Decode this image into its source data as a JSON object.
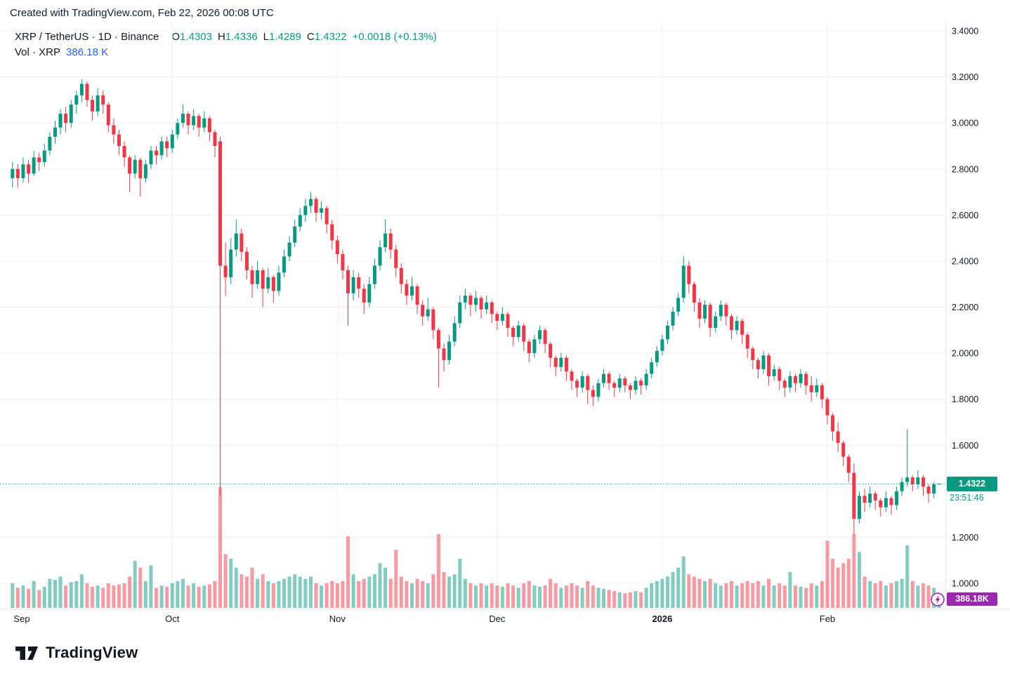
{
  "attribution": "Created with TradingView.com, Feb 22, 2026 00:08 UTC",
  "legend": {
    "symbol": "XRP / TetherUS · 1D · Binance",
    "ohlc_items": [
      {
        "key": "O",
        "value": "1.4303"
      },
      {
        "key": "H",
        "value": "1.4336"
      },
      {
        "key": "L",
        "value": "1.4289"
      },
      {
        "key": "C",
        "value": "1.4322"
      }
    ],
    "change": "+0.0018 (+0.13%)",
    "volume_label": "Vol · XRP",
    "volume_value": "386.18 K"
  },
  "last_price": {
    "value": "1.4322",
    "countdown": "23:51:46"
  },
  "volume_badge": {
    "value": "386.18K"
  },
  "logo": {
    "text": "TradingView"
  },
  "colors": {
    "up": "#089981",
    "down": "#F23645",
    "vol_up": "rgba(8,153,129,0.5)",
    "vol_down": "rgba(242,54,69,0.5)",
    "grid": "#eceff4",
    "axis_line": "#e0e3eb",
    "axis_text": "#131722",
    "accent_blue": "#2962FF",
    "vol_label": "#9C27B0"
  },
  "price_axis": {
    "ticks": [
      {
        "price": 3.4,
        "label": "3.4000"
      },
      {
        "price": 3.2,
        "label": "3.2000"
      },
      {
        "price": 3.0,
        "label": "3.0000"
      },
      {
        "price": 2.8,
        "label": "2.8000"
      },
      {
        "price": 2.6,
        "label": "2.6000"
      },
      {
        "price": 2.4,
        "label": "2.4000"
      },
      {
        "price": 2.2,
        "label": "2.2000"
      },
      {
        "price": 2.0,
        "label": "2.0000"
      },
      {
        "price": 1.8,
        "label": "1.8000"
      },
      {
        "price": 1.6,
        "label": "1.6000"
      },
      {
        "price": 1.2,
        "label": "1.2000"
      },
      {
        "price": 1.0,
        "label": "1.0000"
      }
    ]
  },
  "time_axis": {
    "labels": [
      {
        "label": "Sep",
        "index": 0,
        "bold": false
      },
      {
        "label": "Oct",
        "index": 30,
        "bold": false
      },
      {
        "label": "Nov",
        "index": 61,
        "bold": false
      },
      {
        "label": "Dec",
        "index": 91,
        "bold": false
      },
      {
        "label": "2026",
        "index": 122,
        "bold": true
      },
      {
        "label": "Feb",
        "index": 153,
        "bold": false
      }
    ]
  },
  "chart_data": {
    "type": "candlestick",
    "title": "XRP / TetherUS · 1D · Binance",
    "symbol": "XRP/USDT",
    "interval": "1D",
    "exchange": "Binance",
    "date_start": "2025-09-01",
    "date_end": "2026-02-22",
    "price_range": [
      1.0,
      3.4
    ],
    "last_close": 1.4322,
    "last_volume_k": 386.18,
    "volume_scale_max_k": 5400,
    "candles_format": [
      "open",
      "high",
      "low",
      "close",
      "volume_thousands"
    ],
    "candles": [
      [
        2.76,
        2.83,
        2.72,
        2.8,
        1100
      ],
      [
        2.8,
        2.82,
        2.72,
        2.76,
        900
      ],
      [
        2.76,
        2.85,
        2.74,
        2.82,
        1000
      ],
      [
        2.82,
        2.84,
        2.74,
        2.78,
        850
      ],
      [
        2.78,
        2.88,
        2.77,
        2.85,
        1200
      ],
      [
        2.85,
        2.87,
        2.79,
        2.83,
        800
      ],
      [
        2.83,
        2.91,
        2.81,
        2.88,
        950
      ],
      [
        2.88,
        2.96,
        2.86,
        2.94,
        1300
      ],
      [
        2.94,
        3.01,
        2.91,
        2.98,
        1250
      ],
      [
        2.98,
        3.06,
        2.95,
        3.04,
        1400
      ],
      [
        3.04,
        3.07,
        2.96,
        3.0,
        1000
      ],
      [
        3.0,
        3.1,
        2.98,
        3.08,
        1150
      ],
      [
        3.08,
        3.14,
        3.04,
        3.12,
        1200
      ],
      [
        3.12,
        3.19,
        3.09,
        3.17,
        1500
      ],
      [
        3.17,
        3.18,
        3.07,
        3.1,
        1100
      ],
      [
        3.1,
        3.12,
        3.01,
        3.05,
        950
      ],
      [
        3.05,
        3.15,
        3.03,
        3.12,
        1000
      ],
      [
        3.12,
        3.14,
        3.04,
        3.08,
        900
      ],
      [
        3.08,
        3.09,
        2.96,
        2.99,
        1100
      ],
      [
        2.99,
        3.02,
        2.91,
        2.95,
        1000
      ],
      [
        2.95,
        2.97,
        2.86,
        2.9,
        1050
      ],
      [
        2.9,
        2.92,
        2.81,
        2.85,
        1100
      ],
      [
        2.85,
        2.86,
        2.7,
        2.78,
        1400
      ],
      [
        2.78,
        2.86,
        2.76,
        2.84,
        2100
      ],
      [
        2.84,
        2.85,
        2.68,
        2.76,
        1800
      ],
      [
        2.76,
        2.84,
        2.74,
        2.82,
        1200
      ],
      [
        2.82,
        2.9,
        2.8,
        2.88,
        1900
      ],
      [
        2.88,
        2.9,
        2.82,
        2.86,
        900
      ],
      [
        2.86,
        2.94,
        2.84,
        2.92,
        1000
      ],
      [
        2.92,
        2.94,
        2.85,
        2.89,
        950
      ],
      [
        2.89,
        2.97,
        2.87,
        2.95,
        1100
      ],
      [
        2.95,
        3.02,
        2.93,
        3.0,
        1200
      ],
      [
        3.0,
        3.08,
        2.98,
        3.04,
        1300
      ],
      [
        3.04,
        3.05,
        2.95,
        2.99,
        1000
      ],
      [
        2.99,
        3.06,
        2.97,
        3.03,
        1100
      ],
      [
        3.03,
        3.04,
        2.94,
        2.98,
        950
      ],
      [
        2.98,
        3.05,
        2.96,
        3.02,
        1000
      ],
      [
        3.02,
        3.03,
        2.92,
        2.96,
        1050
      ],
      [
        2.96,
        2.97,
        2.85,
        2.9,
        1200
      ],
      [
        2.92,
        2.94,
        1.38,
        2.38,
        5400
      ],
      [
        2.38,
        2.48,
        2.25,
        2.33,
        2400
      ],
      [
        2.33,
        2.5,
        2.3,
        2.45,
        2200
      ],
      [
        2.45,
        2.58,
        2.42,
        2.52,
        1800
      ],
      [
        2.52,
        2.54,
        2.4,
        2.44,
        1500
      ],
      [
        2.44,
        2.46,
        2.32,
        2.36,
        1400
      ],
      [
        2.36,
        2.38,
        2.24,
        2.3,
        1800
      ],
      [
        2.3,
        2.4,
        2.28,
        2.36,
        1300
      ],
      [
        2.36,
        2.37,
        2.2,
        2.28,
        1500
      ],
      [
        2.28,
        2.37,
        2.26,
        2.33,
        1200
      ],
      [
        2.33,
        2.34,
        2.22,
        2.27,
        1100
      ],
      [
        2.27,
        2.38,
        2.25,
        2.35,
        1200
      ],
      [
        2.35,
        2.45,
        2.33,
        2.42,
        1300
      ],
      [
        2.42,
        2.51,
        2.4,
        2.48,
        1400
      ],
      [
        2.48,
        2.58,
        2.46,
        2.55,
        1500
      ],
      [
        2.55,
        2.63,
        2.53,
        2.6,
        1400
      ],
      [
        2.6,
        2.67,
        2.57,
        2.64,
        1300
      ],
      [
        2.64,
        2.7,
        2.61,
        2.67,
        1400
      ],
      [
        2.67,
        2.68,
        2.57,
        2.61,
        1100
      ],
      [
        2.61,
        2.66,
        2.58,
        2.63,
        1000
      ],
      [
        2.63,
        2.64,
        2.52,
        2.56,
        1100
      ],
      [
        2.56,
        2.58,
        2.45,
        2.49,
        1200
      ],
      [
        2.49,
        2.51,
        2.39,
        2.43,
        1100
      ],
      [
        2.43,
        2.45,
        2.32,
        2.36,
        1200
      ],
      [
        2.36,
        2.38,
        2.12,
        2.26,
        3200
      ],
      [
        2.26,
        2.36,
        2.23,
        2.33,
        1500
      ],
      [
        2.33,
        2.35,
        2.24,
        2.28,
        1200
      ],
      [
        2.28,
        2.3,
        2.17,
        2.22,
        1300
      ],
      [
        2.22,
        2.33,
        2.2,
        2.3,
        1400
      ],
      [
        2.3,
        2.41,
        2.28,
        2.38,
        1500
      ],
      [
        2.38,
        2.49,
        2.36,
        2.46,
        2000
      ],
      [
        2.46,
        2.58,
        2.44,
        2.52,
        1800
      ],
      [
        2.52,
        2.54,
        2.41,
        2.45,
        1300
      ],
      [
        2.45,
        2.47,
        2.33,
        2.37,
        2600
      ],
      [
        2.37,
        2.39,
        2.26,
        2.3,
        1400
      ],
      [
        2.3,
        2.32,
        2.21,
        2.25,
        1200
      ],
      [
        2.25,
        2.33,
        2.23,
        2.29,
        1100
      ],
      [
        2.29,
        2.3,
        2.17,
        2.21,
        1300
      ],
      [
        2.21,
        2.23,
        2.12,
        2.16,
        1200
      ],
      [
        2.16,
        2.24,
        2.14,
        2.19,
        1100
      ],
      [
        2.19,
        2.2,
        2.06,
        2.1,
        1500
      ],
      [
        2.1,
        2.11,
        1.85,
        2.02,
        3300
      ],
      [
        2.02,
        2.04,
        1.92,
        1.97,
        1600
      ],
      [
        1.97,
        2.08,
        1.95,
        2.05,
        1400
      ],
      [
        2.05,
        2.16,
        2.03,
        2.13,
        1500
      ],
      [
        2.13,
        2.25,
        2.11,
        2.22,
        2200
      ],
      [
        2.22,
        2.28,
        2.19,
        2.25,
        1300
      ],
      [
        2.25,
        2.26,
        2.16,
        2.21,
        1100
      ],
      [
        2.21,
        2.27,
        2.18,
        2.24,
        1000
      ],
      [
        2.24,
        2.25,
        2.15,
        2.19,
        1100
      ],
      [
        2.19,
        2.25,
        2.17,
        2.22,
        1000
      ],
      [
        2.22,
        2.23,
        2.13,
        2.17,
        1100
      ],
      [
        2.17,
        2.18,
        2.1,
        2.14,
        1000
      ],
      [
        2.14,
        2.2,
        2.12,
        2.17,
        950
      ],
      [
        2.17,
        2.18,
        2.07,
        2.11,
        1100
      ],
      [
        2.11,
        2.12,
        2.03,
        2.07,
        1000
      ],
      [
        2.07,
        2.14,
        2.05,
        2.12,
        900
      ],
      [
        2.12,
        2.13,
        2.01,
        2.05,
        1100
      ],
      [
        2.05,
        2.06,
        1.96,
        2.0,
        1200
      ],
      [
        2.0,
        2.08,
        1.98,
        2.06,
        1000
      ],
      [
        2.06,
        2.12,
        2.04,
        2.1,
        950
      ],
      [
        2.1,
        2.11,
        2.0,
        2.04,
        1000
      ],
      [
        2.04,
        2.05,
        1.94,
        1.98,
        1300
      ],
      [
        1.98,
        1.99,
        1.9,
        1.94,
        1100
      ],
      [
        1.94,
        2.0,
        1.92,
        1.98,
        900
      ],
      [
        1.98,
        1.99,
        1.88,
        1.92,
        1000
      ],
      [
        1.92,
        1.93,
        1.84,
        1.88,
        1100
      ],
      [
        1.88,
        1.89,
        1.81,
        1.85,
        1000
      ],
      [
        1.85,
        1.92,
        1.83,
        1.9,
        900
      ],
      [
        1.9,
        1.91,
        1.78,
        1.84,
        1200
      ],
      [
        1.84,
        1.86,
        1.77,
        1.81,
        1000
      ],
      [
        1.81,
        1.89,
        1.79,
        1.87,
        900
      ],
      [
        1.87,
        1.93,
        1.85,
        1.91,
        850
      ],
      [
        1.91,
        1.92,
        1.84,
        1.87,
        800
      ],
      [
        1.87,
        1.88,
        1.81,
        1.85,
        750
      ],
      [
        1.85,
        1.91,
        1.83,
        1.89,
        700
      ],
      [
        1.89,
        1.9,
        1.83,
        1.86,
        650
      ],
      [
        1.86,
        1.87,
        1.8,
        1.84,
        700
      ],
      [
        1.84,
        1.9,
        1.82,
        1.88,
        750
      ],
      [
        1.88,
        1.89,
        1.82,
        1.86,
        700
      ],
      [
        1.86,
        1.93,
        1.84,
        1.91,
        900
      ],
      [
        1.91,
        1.98,
        1.89,
        1.96,
        1100
      ],
      [
        1.96,
        2.03,
        1.94,
        2.01,
        1200
      ],
      [
        2.01,
        2.08,
        1.99,
        2.06,
        1300
      ],
      [
        2.06,
        2.14,
        2.04,
        2.12,
        1400
      ],
      [
        2.12,
        2.2,
        2.1,
        2.18,
        1600
      ],
      [
        2.18,
        2.26,
        2.16,
        2.24,
        1800
      ],
      [
        2.24,
        2.42,
        2.22,
        2.38,
        2300
      ],
      [
        2.38,
        2.4,
        2.26,
        2.3,
        1500
      ],
      [
        2.3,
        2.31,
        2.18,
        2.22,
        1400
      ],
      [
        2.22,
        2.24,
        2.11,
        2.15,
        1300
      ],
      [
        2.15,
        2.23,
        2.13,
        2.21,
        1200
      ],
      [
        2.21,
        2.22,
        2.07,
        2.11,
        1300
      ],
      [
        2.11,
        2.18,
        2.09,
        2.16,
        1100
      ],
      [
        2.16,
        2.23,
        2.14,
        2.21,
        1000
      ],
      [
        2.21,
        2.22,
        2.12,
        2.16,
        1100
      ],
      [
        2.16,
        2.17,
        2.06,
        2.1,
        1200
      ],
      [
        2.1,
        2.16,
        2.08,
        2.14,
        1000
      ],
      [
        2.14,
        2.15,
        2.04,
        2.08,
        1100
      ],
      [
        2.08,
        2.09,
        1.98,
        2.02,
        1200
      ],
      [
        2.02,
        2.03,
        1.93,
        1.97,
        1100
      ],
      [
        1.97,
        1.98,
        1.89,
        1.93,
        1200
      ],
      [
        1.93,
        2.01,
        1.91,
        1.99,
        1000
      ],
      [
        1.99,
        2.0,
        1.86,
        1.9,
        1300
      ],
      [
        1.9,
        1.95,
        1.88,
        1.93,
        1000
      ],
      [
        1.93,
        1.94,
        1.84,
        1.88,
        1100
      ],
      [
        1.88,
        1.89,
        1.81,
        1.85,
        1000
      ],
      [
        1.85,
        1.92,
        1.83,
        1.9,
        1600
      ],
      [
        1.9,
        1.91,
        1.83,
        1.87,
        1000
      ],
      [
        1.87,
        1.93,
        1.85,
        1.91,
        950
      ],
      [
        1.91,
        1.92,
        1.82,
        1.86,
        900
      ],
      [
        1.86,
        1.9,
        1.79,
        1.83,
        1100
      ],
      [
        1.83,
        1.89,
        1.81,
        1.86,
        1000
      ],
      [
        1.86,
        1.87,
        1.76,
        1.8,
        1200
      ],
      [
        1.8,
        1.81,
        1.69,
        1.73,
        3000
      ],
      [
        1.73,
        1.74,
        1.62,
        1.66,
        2200
      ],
      [
        1.66,
        1.7,
        1.57,
        1.61,
        1800
      ],
      [
        1.61,
        1.62,
        1.51,
        1.55,
        2000
      ],
      [
        1.55,
        1.56,
        1.44,
        1.48,
        2200
      ],
      [
        1.48,
        1.52,
        1.21,
        1.28,
        3300
      ],
      [
        1.28,
        1.4,
        1.26,
        1.38,
        2500
      ],
      [
        1.38,
        1.41,
        1.31,
        1.35,
        1400
      ],
      [
        1.35,
        1.42,
        1.33,
        1.39,
        1200
      ],
      [
        1.39,
        1.4,
        1.32,
        1.36,
        1100
      ],
      [
        1.36,
        1.37,
        1.29,
        1.33,
        1200
      ],
      [
        1.33,
        1.4,
        1.31,
        1.37,
        1000
      ],
      [
        1.37,
        1.38,
        1.3,
        1.34,
        1100
      ],
      [
        1.34,
        1.42,
        1.32,
        1.4,
        1200
      ],
      [
        1.4,
        1.46,
        1.38,
        1.44,
        1300
      ],
      [
        1.44,
        1.67,
        1.42,
        1.46,
        2800
      ],
      [
        1.46,
        1.47,
        1.4,
        1.43,
        1200
      ],
      [
        1.43,
        1.49,
        1.41,
        1.46,
        1000
      ],
      [
        1.46,
        1.47,
        1.38,
        1.42,
        1100
      ],
      [
        1.42,
        1.43,
        1.35,
        1.39,
        1000
      ],
      [
        1.39,
        1.44,
        1.37,
        1.43,
        900
      ],
      [
        1.4303,
        1.4336,
        1.4289,
        1.4322,
        386.18
      ]
    ]
  }
}
